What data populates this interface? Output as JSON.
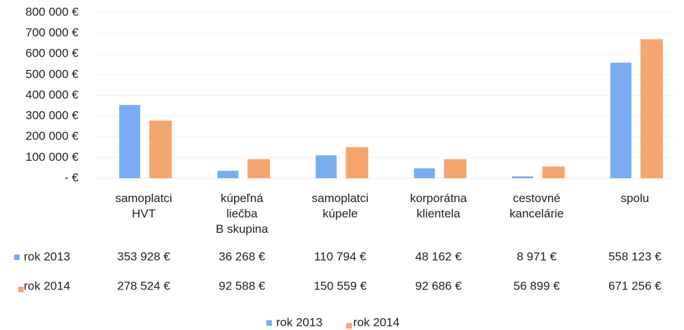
{
  "chart_data": {
    "type": "bar",
    "categories": [
      "samoplatci\nHVT",
      "kúpeľná\nliečba\nB skupina",
      "samoplatci\nkúpele",
      "korporátna\nklientela",
      "cestovné\nkancelárie",
      "spolu"
    ],
    "series": [
      {
        "name": "rok 2013",
        "color": "#78adf2",
        "values": [
          353928,
          36268,
          110794,
          48162,
          8971,
          558123
        ],
        "value_labels": [
          "353 928 €",
          "36 268 €",
          "110 794 €",
          "48 162 €",
          "8 971 €",
          "558 123 €"
        ]
      },
      {
        "name": "rok 2014",
        "color": "#f5a66e",
        "values": [
          278524,
          92588,
          150559,
          92686,
          56899,
          671256
        ],
        "value_labels": [
          "278 524 €",
          "92 588 €",
          "150 559 €",
          "92 686 €",
          "56 899 €",
          "671 256 €"
        ]
      }
    ],
    "ylim": [
      0,
      800000
    ],
    "yticks": [
      {
        "value": 0,
        "label": "-   €"
      },
      {
        "value": 100000,
        "label": "100 000 €"
      },
      {
        "value": 200000,
        "label": "200 000 €"
      },
      {
        "value": 300000,
        "label": "300 000 €"
      },
      {
        "value": 400000,
        "label": "400 000 €"
      },
      {
        "value": 500000,
        "label": "500 000 €"
      },
      {
        "value": 600000,
        "label": "600 000 €"
      },
      {
        "value": 700000,
        "label": "700 000 €"
      },
      {
        "value": 800000,
        "label": "800 000 €"
      }
    ],
    "grid": true
  }
}
